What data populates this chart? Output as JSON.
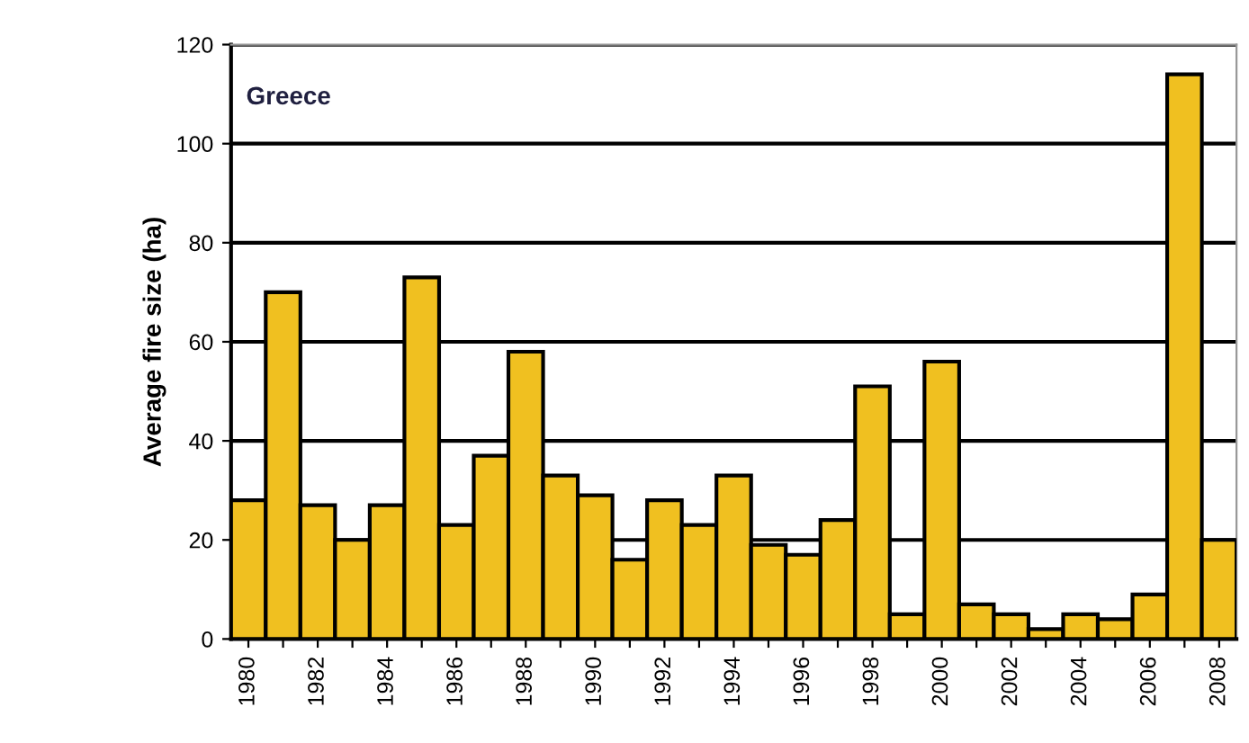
{
  "chart_data": {
    "type": "bar",
    "ylabel": "Average fire size (ha)",
    "annotations": [
      "Greece"
    ],
    "categories": [
      "1980",
      null,
      "1982",
      null,
      "1984",
      null,
      "1986",
      null,
      "1988",
      null,
      "1990",
      null,
      "1992",
      null,
      "1994",
      null,
      "1996",
      null,
      "1998",
      null,
      "2000",
      null,
      "2002",
      null,
      "2004",
      null,
      "2006",
      null,
      "2008"
    ],
    "values": [
      28,
      70,
      27,
      20,
      27,
      73,
      23,
      37,
      58,
      33,
      29,
      16,
      28,
      23,
      33,
      19,
      17,
      24,
      51,
      5,
      56,
      7,
      5,
      2,
      5,
      4,
      9,
      114,
      20
    ],
    "color": "#f0c020",
    "ylim": [
      0,
      120
    ],
    "yticks": [
      0,
      20,
      40,
      60,
      80,
      100,
      120
    ],
    "grid": "y",
    "legend": false
  }
}
